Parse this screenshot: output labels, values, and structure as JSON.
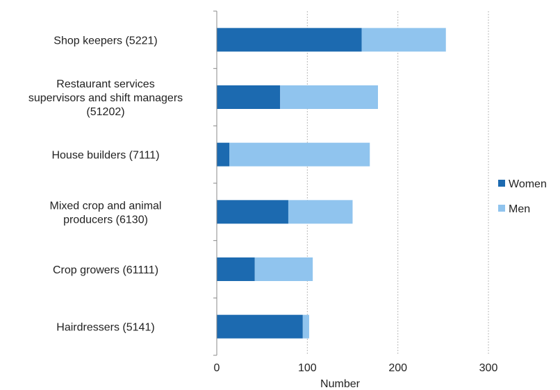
{
  "chart_data": {
    "type": "bar",
    "orientation": "horizontal",
    "stacked": true,
    "categories": [
      [
        "Shop keepers (5221)"
      ],
      [
        "Restaurant services",
        "supervisors and shift managers",
        "(51202)"
      ],
      [
        "House builders (7111)"
      ],
      [
        "Mixed crop and animal",
        "producers (6130)"
      ],
      [
        "Crop growers (61111)"
      ],
      [
        "Hairdressers (5141)"
      ]
    ],
    "series": [
      {
        "name": "Women",
        "color": "#1c6ab0",
        "values": [
          160,
          70,
          14,
          79,
          42,
          95
        ]
      },
      {
        "name": "Men",
        "color": "#90c4ee",
        "values": [
          93,
          108,
          155,
          71,
          64,
          7
        ]
      }
    ],
    "xlabel": "Number",
    "xlim": [
      0,
      300
    ],
    "xticks": [
      0,
      100,
      200,
      300
    ],
    "grid": "vertical",
    "legend_position": "right"
  }
}
